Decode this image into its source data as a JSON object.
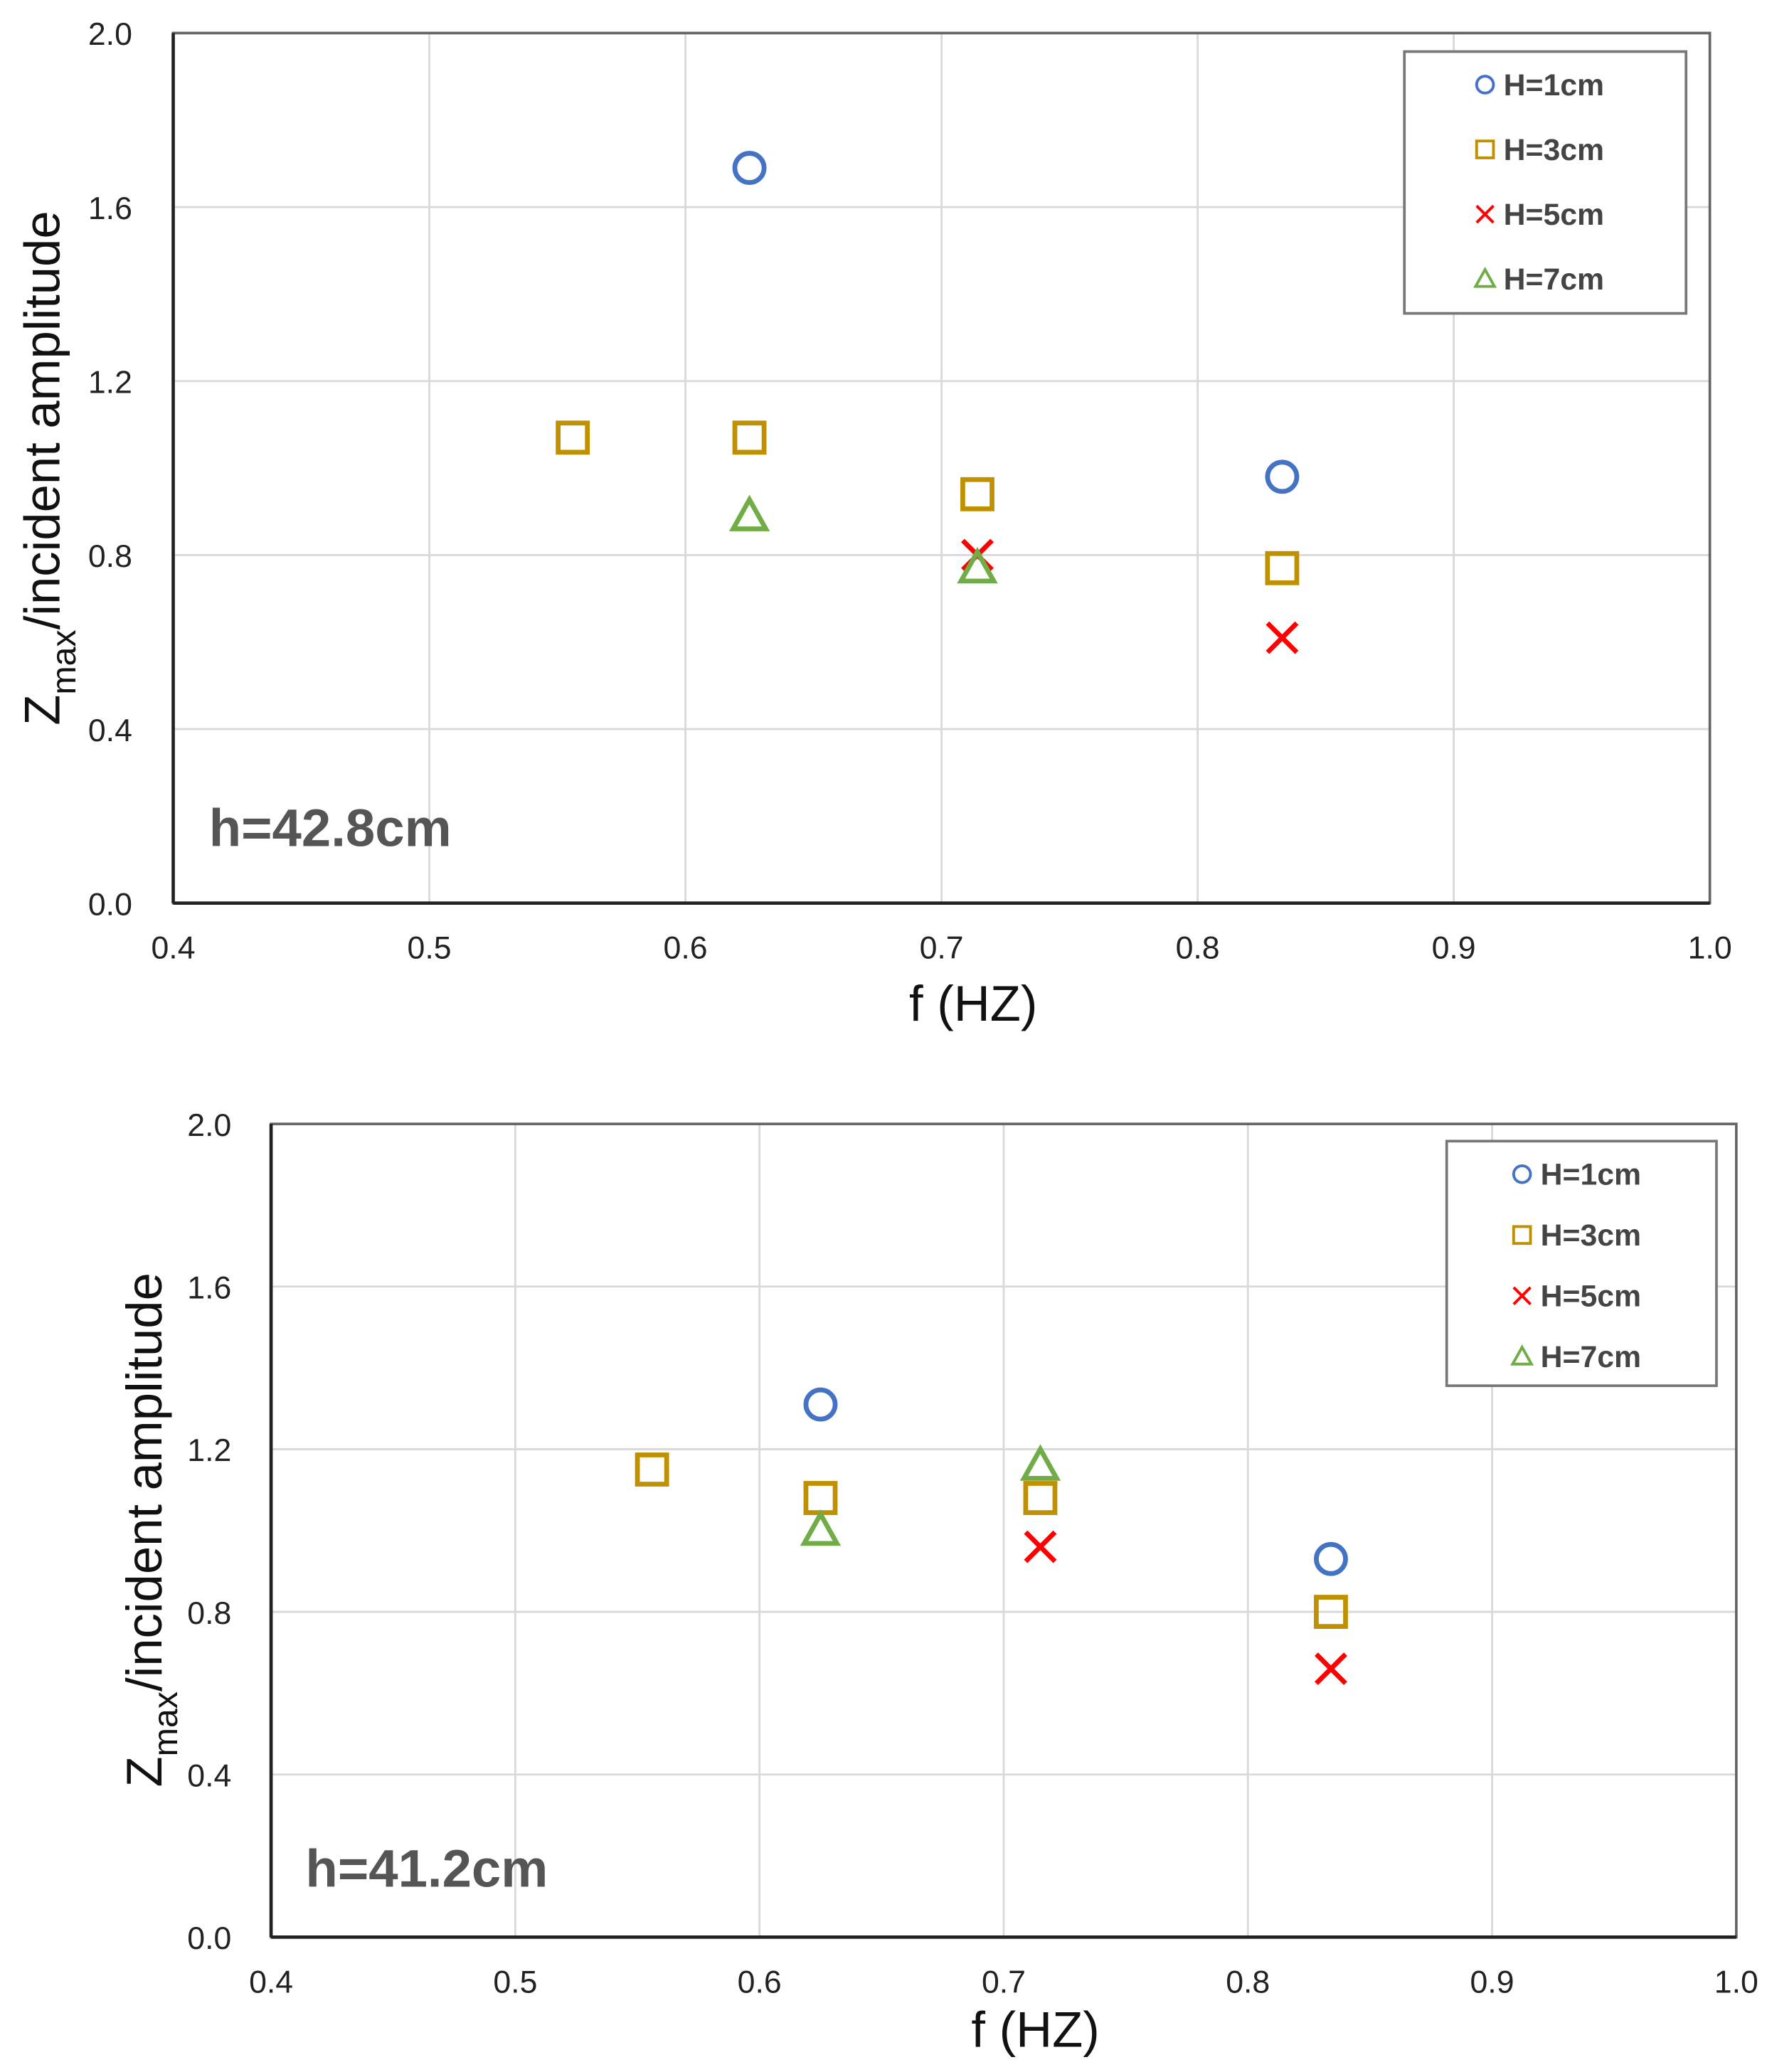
{
  "chart_data": [
    {
      "type": "scatter",
      "annotation": "h=42.8cm",
      "xlabel": "f (HZ)",
      "ylabel_main": "Z",
      "ylabel_sub": "max",
      "ylabel_rest": "/incident amplitude",
      "xlim": [
        0.4,
        1.0
      ],
      "ylim": [
        0.0,
        2.0
      ],
      "xticks": [
        "0.4",
        "0.5",
        "0.6",
        "0.7",
        "0.8",
        "0.9",
        "1.0"
      ],
      "yticks": [
        "0.0",
        "0.4",
        "0.8",
        "1.2",
        "1.6",
        "2.0"
      ],
      "grid": true,
      "legend_position": "top-right",
      "series": [
        {
          "name": "H=1cm",
          "marker": "circle",
          "color": "#4472C4",
          "x": [
            0.625,
            0.833
          ],
          "y": [
            1.69,
            0.98
          ]
        },
        {
          "name": "H=3cm",
          "marker": "square",
          "color": "#BF9000",
          "x": [
            0.556,
            0.625,
            0.714,
            0.833
          ],
          "y": [
            1.07,
            1.07,
            0.94,
            0.77
          ]
        },
        {
          "name": "H=5cm",
          "marker": "x",
          "color": "#FF0000",
          "x": [
            0.714,
            0.833
          ],
          "y": [
            0.8,
            0.61
          ]
        },
        {
          "name": "H=7cm",
          "marker": "triangle",
          "color": "#70AD47",
          "x": [
            0.625,
            0.714
          ],
          "y": [
            0.89,
            0.77
          ]
        }
      ]
    },
    {
      "type": "scatter",
      "annotation": "h=41.2cm",
      "xlabel": "f (HZ)",
      "ylabel_main": "Z",
      "ylabel_sub": "max",
      "ylabel_rest": "/incident amplitude",
      "xlim": [
        0.4,
        1.0
      ],
      "ylim": [
        0.0,
        2.0
      ],
      "xticks": [
        "0.4",
        "0.5",
        "0.6",
        "0.7",
        "0.8",
        "0.9",
        "1.0"
      ],
      "yticks": [
        "0.0",
        "0.4",
        "0.8",
        "1.2",
        "1.6",
        "2.0"
      ],
      "grid": true,
      "legend_position": "top-right",
      "series": [
        {
          "name": "H=1cm",
          "marker": "circle",
          "color": "#4472C4",
          "x": [
            0.625,
            0.834
          ],
          "y": [
            1.31,
            0.93
          ]
        },
        {
          "name": "H=3cm",
          "marker": "square",
          "color": "#BF9000",
          "x": [
            0.556,
            0.625,
            0.715,
            0.834
          ],
          "y": [
            1.15,
            1.08,
            1.08,
            0.8
          ]
        },
        {
          "name": "H=5cm",
          "marker": "x",
          "color": "#FF0000",
          "x": [
            0.715,
            0.834
          ],
          "y": [
            0.96,
            0.66
          ]
        },
        {
          "name": "H=7cm",
          "marker": "triangle",
          "color": "#70AD47",
          "x": [
            0.625,
            0.715
          ],
          "y": [
            1.0,
            1.16
          ]
        }
      ]
    }
  ]
}
